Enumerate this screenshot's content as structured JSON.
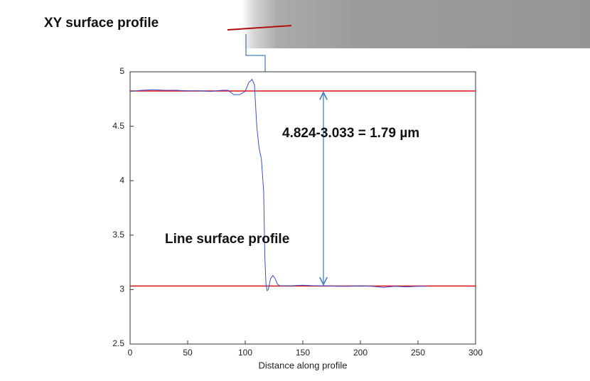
{
  "banner": {
    "title": "XY surface profile"
  },
  "chart_data": {
    "type": "line",
    "xlabel": "Distance along profile",
    "xlim": [
      0,
      300
    ],
    "ylim": [
      2.5,
      5
    ],
    "xticks": [
      0,
      50,
      100,
      150,
      200,
      250,
      300
    ],
    "yticks": [
      2.5,
      3,
      3.5,
      4,
      4.5,
      5
    ],
    "x": [
      0,
      10,
      20,
      30,
      40,
      50,
      60,
      70,
      80,
      85,
      90,
      95,
      100,
      103,
      106,
      108,
      110,
      112,
      114,
      116,
      117,
      118,
      119,
      120,
      122,
      124,
      126,
      128,
      130,
      140,
      150,
      160,
      170,
      180,
      190,
      200,
      210,
      220,
      230,
      240,
      250,
      257
    ],
    "series": [
      {
        "color": "#3a4fd0",
        "values": [
          4.82,
          4.83,
          4.835,
          4.83,
          4.83,
          4.825,
          4.825,
          4.82,
          4.83,
          4.83,
          4.79,
          4.79,
          4.82,
          4.9,
          4.93,
          4.88,
          4.5,
          4.3,
          4.2,
          3.9,
          3.3,
          3.05,
          2.99,
          3.0,
          3.1,
          3.13,
          3.1,
          3.05,
          3.035,
          3.035,
          3.04,
          3.035,
          3.035,
          3.03,
          3.03,
          3.035,
          3.03,
          3.02,
          3.03,
          3.025,
          3.03,
          3.03
        ]
      }
    ],
    "hlines": [
      {
        "value": 4.824,
        "color": "#e01010"
      },
      {
        "value": 3.033,
        "color": "#e01010"
      }
    ],
    "annotations": [
      "4.824-3.033  =  1.79 µm",
      "Line surface profile"
    ]
  }
}
